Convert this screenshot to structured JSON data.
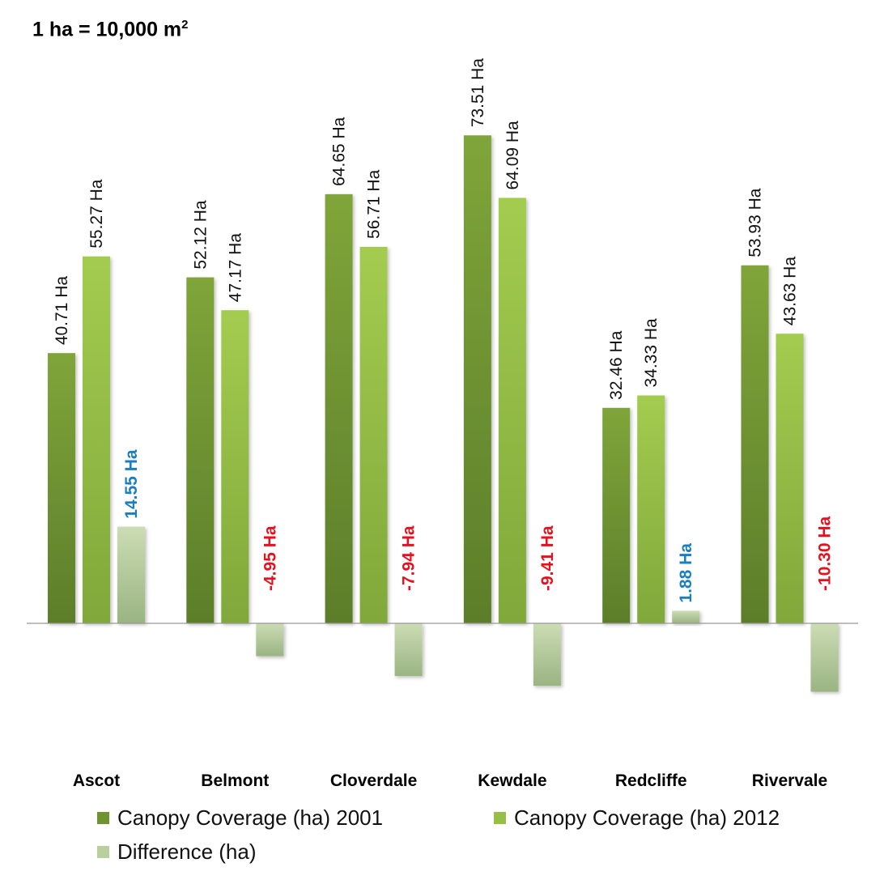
{
  "note": {
    "text": "1 ha = 10,000 m",
    "superscript": "2"
  },
  "chart_data": {
    "type": "bar",
    "categories": [
      "Ascot",
      "Belmont",
      "Cloverdale",
      "Kewdale",
      "Redcliffe",
      "Rivervale"
    ],
    "series": [
      {
        "name": "Canopy Coverage (ha) 2001",
        "values": [
          40.71,
          52.12,
          64.65,
          73.51,
          32.46,
          53.93
        ],
        "labels": [
          "40.71 Ha",
          "52.12 Ha",
          "64.65 Ha",
          "73.51 Ha",
          "32.46 Ha",
          "53.93 Ha"
        ]
      },
      {
        "name": "Canopy Coverage (ha) 2012",
        "values": [
          55.27,
          47.17,
          56.71,
          64.09,
          34.33,
          43.63
        ],
        "labels": [
          "55.27 Ha",
          "47.17 Ha",
          "56.71 Ha",
          "64.09 Ha",
          "34.33 Ha",
          "43.63 Ha"
        ]
      },
      {
        "name": "Difference (ha)",
        "values": [
          14.55,
          -4.95,
          -7.94,
          -9.41,
          1.88,
          -10.3
        ],
        "labels": [
          "14.55 Ha",
          "-4.95 Ha",
          "-7.94 Ha",
          "-9.41 Ha",
          "1.88 Ha",
          "-10.30 Ha"
        ]
      }
    ],
    "ylim": [
      -15,
      80
    ],
    "grid": false,
    "legend_position": "bottom",
    "colors": {
      "series2001": "#6e9432",
      "series2012": "#95bf45",
      "difference": "#b9cf9e",
      "positive_label": "#1a7fc0",
      "negative_label": "#e8101c",
      "value_label": "#111111",
      "axis": "#999999"
    }
  }
}
